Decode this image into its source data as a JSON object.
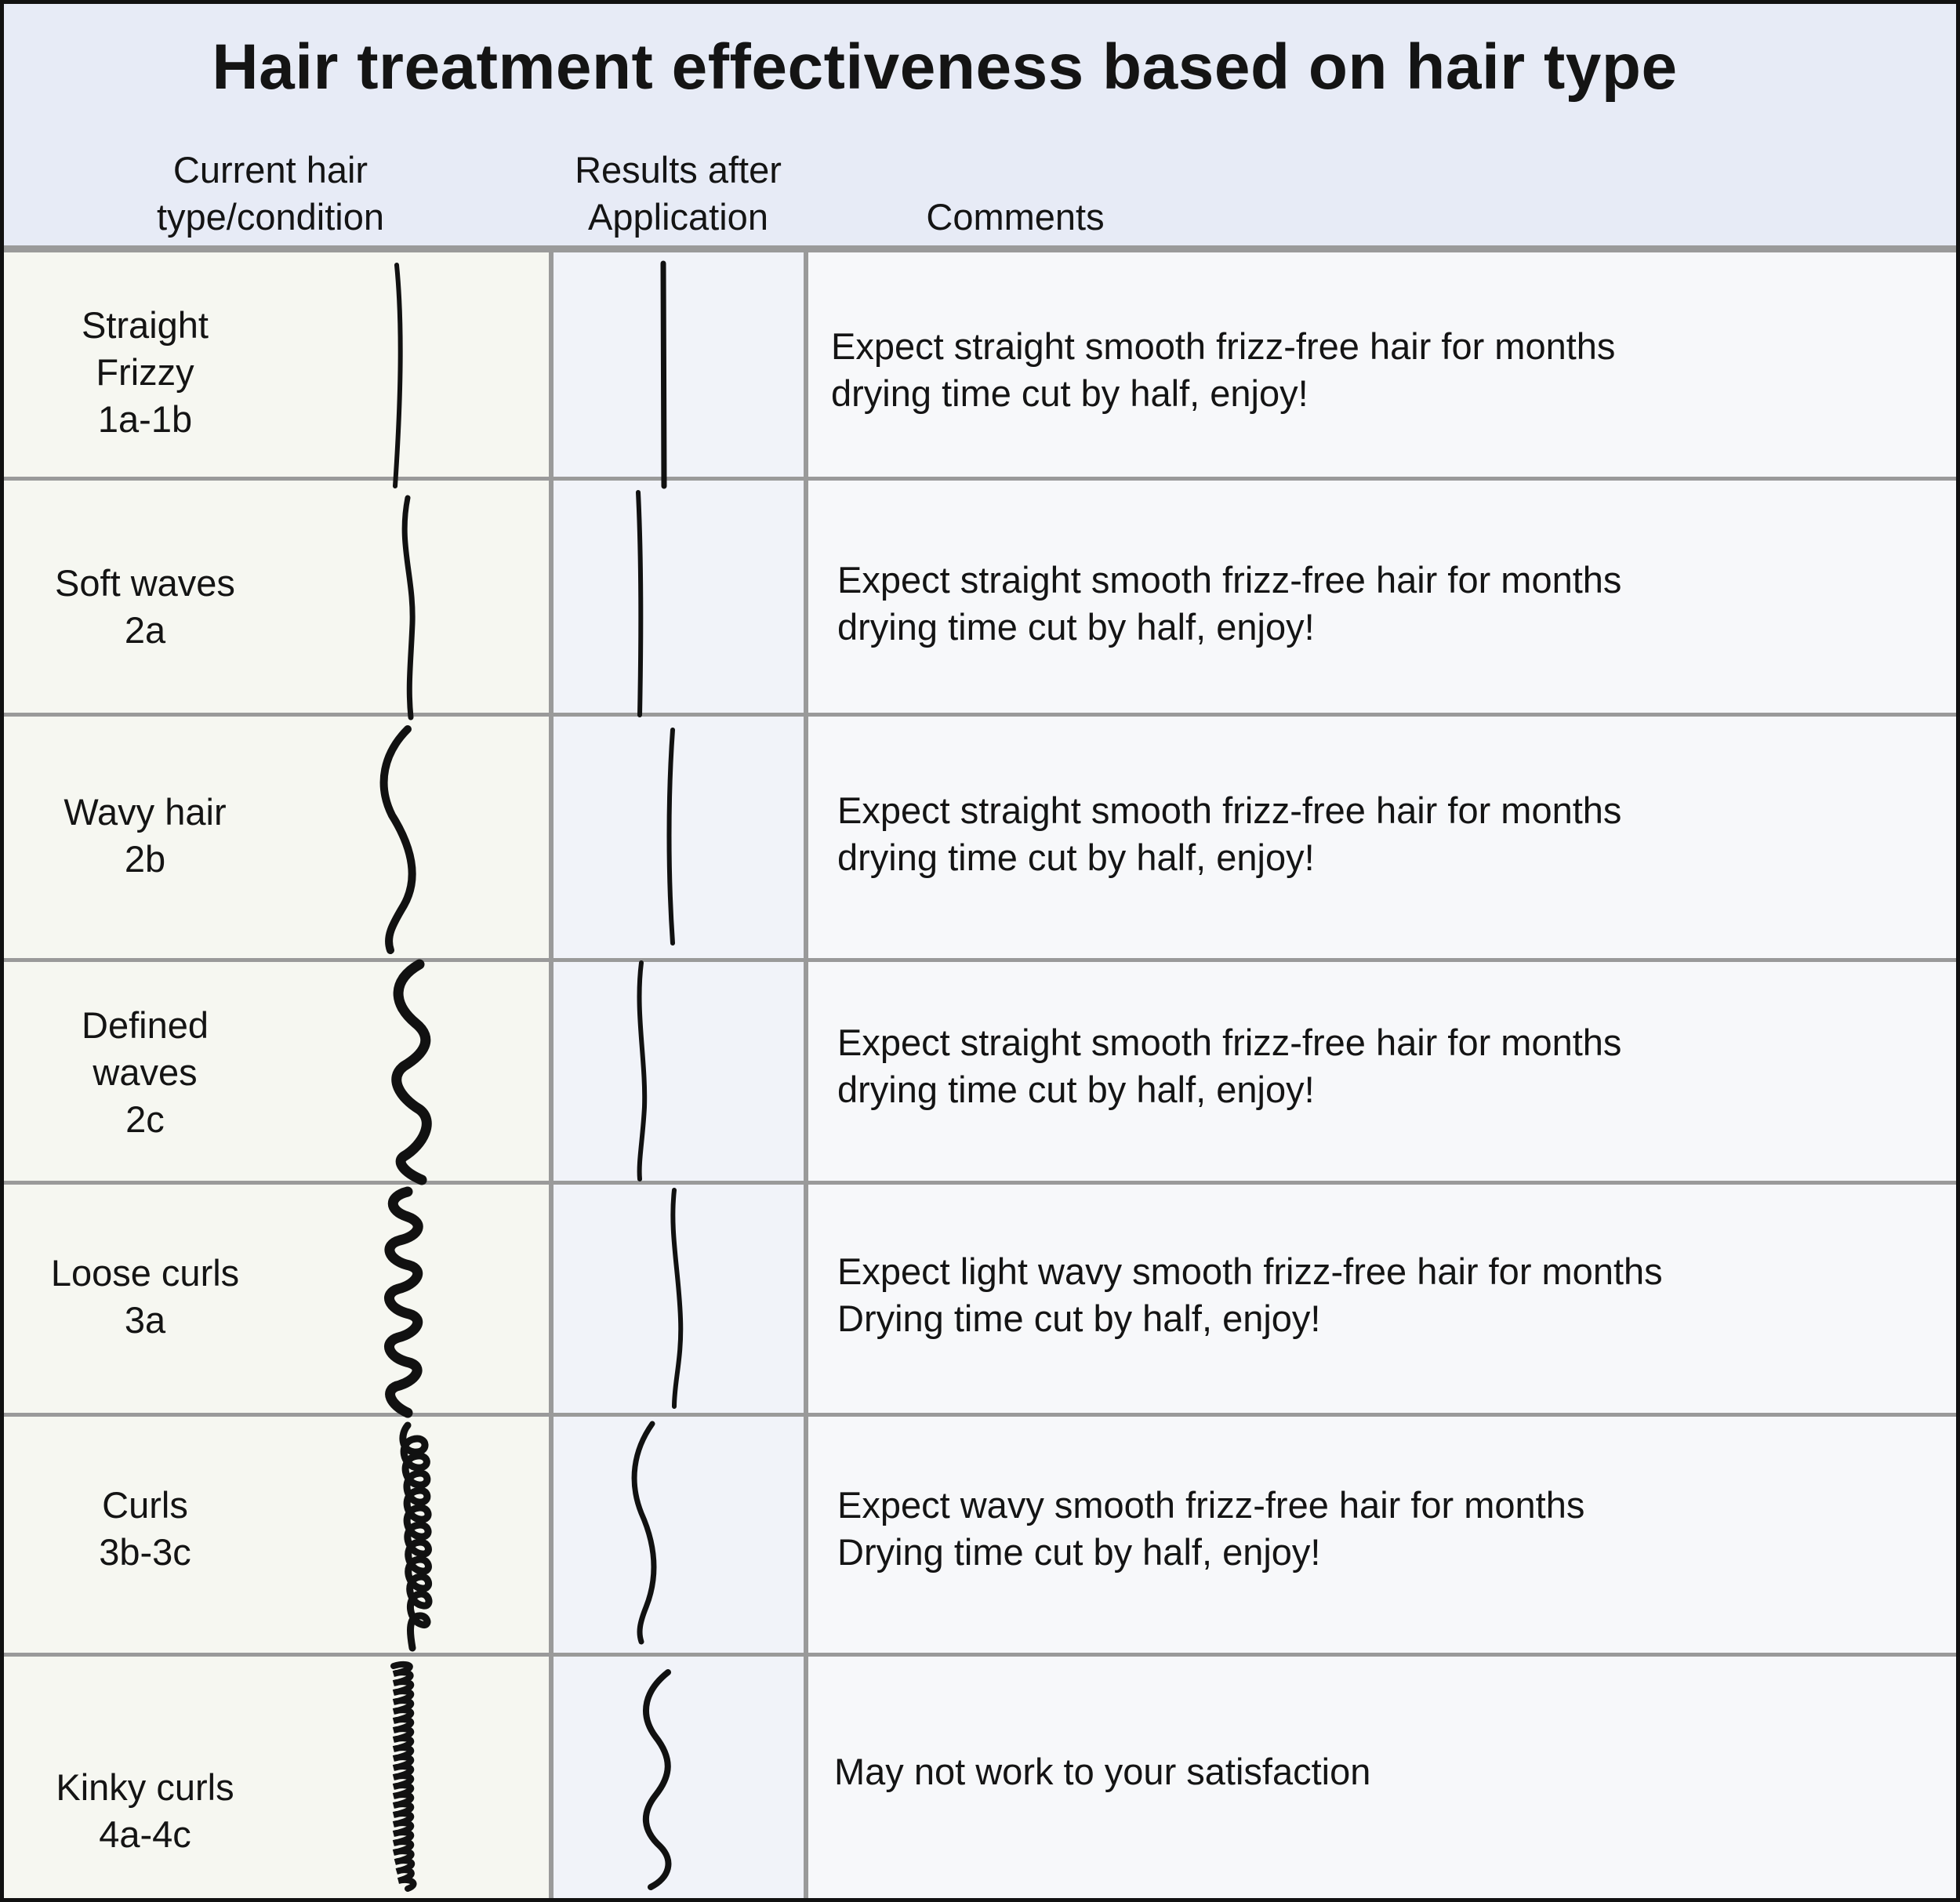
{
  "title": "Hair treatment effectiveness based on hair type",
  "headers": {
    "current": [
      "Current hair",
      "type/condition"
    ],
    "results": [
      "Results after",
      "Application"
    ],
    "comments": [
      "Comments"
    ]
  },
  "rows": [
    {
      "label": [
        "Straight",
        "Frizzy",
        "1a-1b"
      ],
      "comment": [
        "Expect straight smooth frizz-free hair for months",
        "drying time cut by half, enjoy!"
      ],
      "before_icon": "straight-hair-strand-icon",
      "after_icon": "straight-hair-strand-icon"
    },
    {
      "label": [
        "Soft waves",
        "2a"
      ],
      "comment": [
        "Expect straight smooth frizz-free hair for months",
        "drying time cut by half, enjoy!"
      ],
      "before_icon": "soft-wave-hair-strand-icon",
      "after_icon": "straight-hair-strand-icon"
    },
    {
      "label": [
        "Wavy hair",
        "2b"
      ],
      "comment": [
        "Expect straight smooth frizz-free hair for months",
        "drying time cut by half, enjoy!"
      ],
      "before_icon": "wavy-hair-strand-icon",
      "after_icon": "straight-hair-strand-icon"
    },
    {
      "label": [
        "Defined",
        "waves",
        "2c"
      ],
      "comment": [
        "Expect straight smooth frizz-free hair for months",
        "drying time cut by half, enjoy!"
      ],
      "before_icon": "defined-wave-hair-strand-icon",
      "after_icon": "near-straight-hair-strand-icon"
    },
    {
      "label": [
        "Loose curls",
        "3a"
      ],
      "comment": [
        "Expect light wavy smooth frizz-free hair for months",
        "Drying time cut by half, enjoy!"
      ],
      "before_icon": "loose-curl-hair-strand-icon",
      "after_icon": "light-wave-hair-strand-icon"
    },
    {
      "label": [
        "Curls",
        "3b-3c"
      ],
      "comment": [
        "Expect wavy smooth frizz-free hair for months",
        "Drying time cut by half, enjoy!"
      ],
      "before_icon": "curl-hair-strand-icon",
      "after_icon": "wavy-hair-strand-icon"
    },
    {
      "label": [
        "Kinky curls",
        "4a-4c"
      ],
      "comment": [
        "May not work to your satisfaction"
      ],
      "before_icon": "kinky-curl-hair-strand-icon",
      "after_icon": "defined-wave-hair-strand-icon"
    }
  ]
}
